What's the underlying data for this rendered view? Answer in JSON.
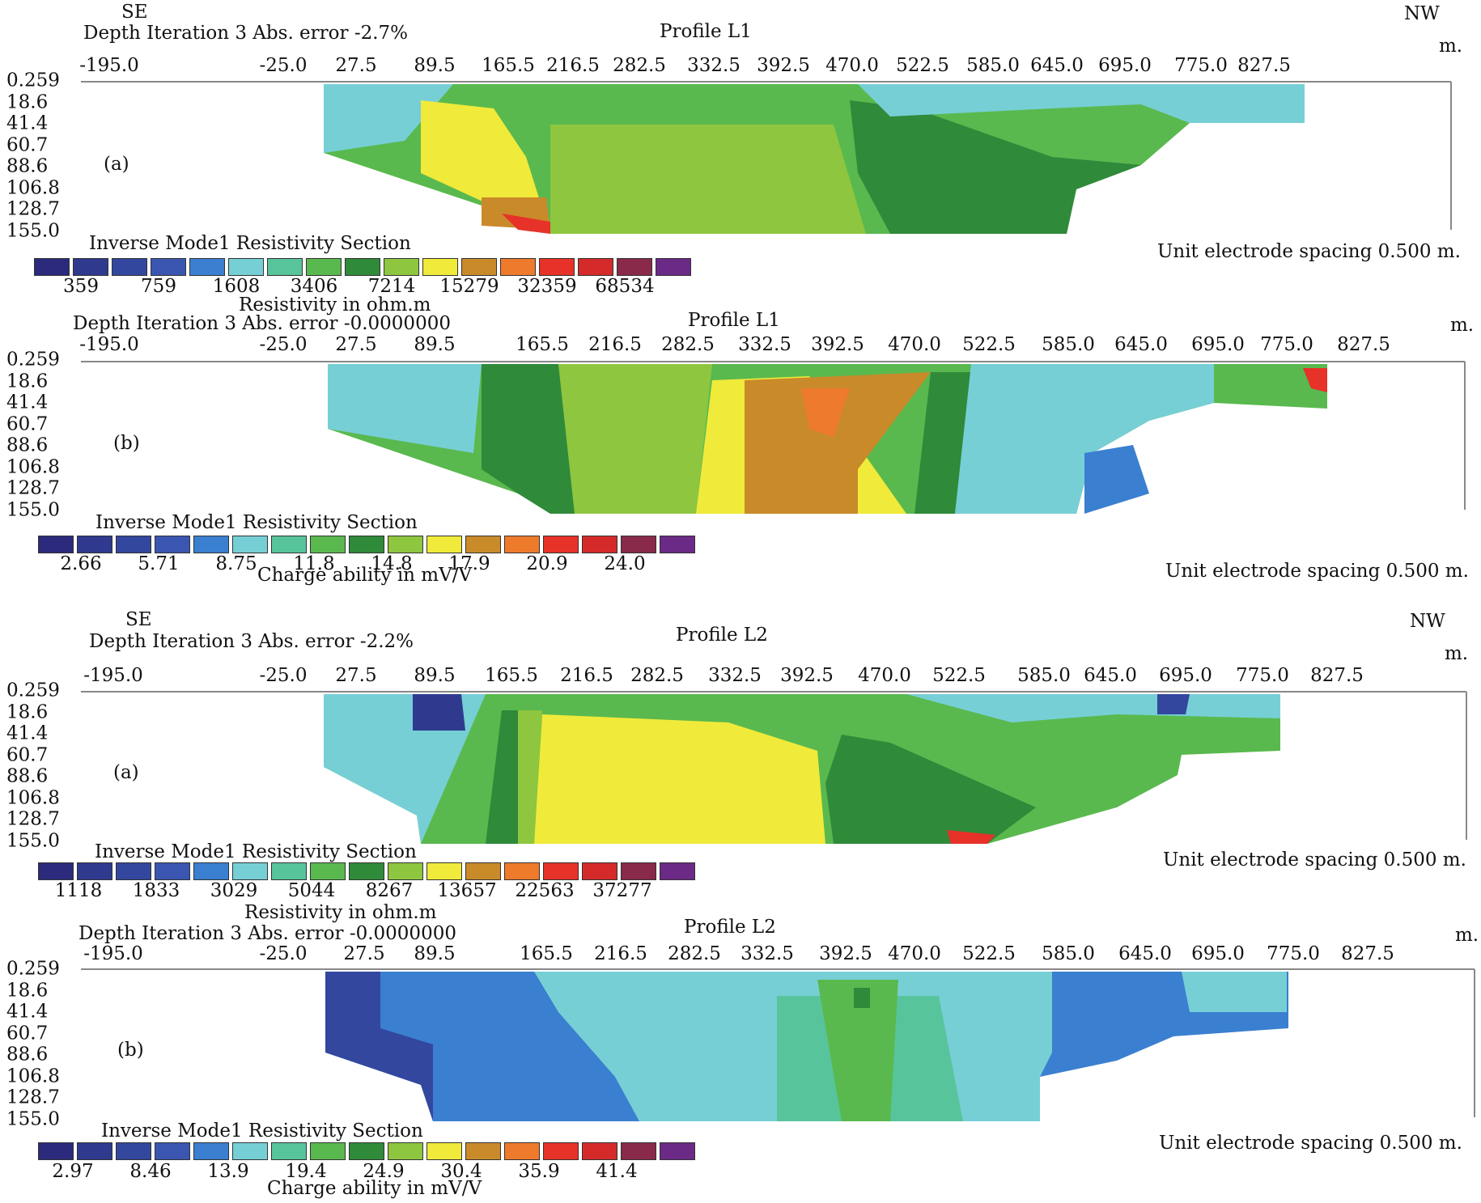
{
  "colors": {
    "scale": [
      "#2b2a7c",
      "#2f3a8f",
      "#33479f",
      "#3a56b0",
      "#3b7fd0",
      "#77cfd6",
      "#58c49c",
      "#59b94e",
      "#2f8a3a",
      "#8ec63f",
      "#f0ea3a",
      "#c98a2a",
      "#ee7a2c",
      "#e63228",
      "#d42a2a",
      "#8a2a4a",
      "#6b2a86"
    ],
    "axis": "#888888",
    "text": "#111111"
  },
  "panels": [
    {
      "id": "L1a",
      "se": "SE",
      "nw": "NW",
      "header": "Depth Iteration 3 Abs. error -2.7%",
      "profile": "Profile L1",
      "unit_m": "m.",
      "label": "(a)",
      "section_title": "Inverse Mode1 Resistivity Section",
      "legend_values": [
        "359",
        "759",
        "1608",
        "3406",
        "7214",
        "15279",
        "32359",
        "68534"
      ],
      "legend_caption": "",
      "spacing": "Unit electrode spacing 0.500 m."
    },
    {
      "id": "L1b",
      "se": "",
      "nw": "",
      "header": "Depth Iteration 3 Abs. error -0.0000000",
      "profile": "Profile L1",
      "unit_m": "m.",
      "label": "(b)",
      "section_title": "Inverse Mode1 Resistivity Section",
      "legend_values": [
        "2.66",
        "5.71",
        "8.75",
        "11.8",
        "14.8",
        "17.9",
        "20.9",
        "24.0"
      ],
      "legend_caption": "Charge ability in mV/V",
      "spacing": "Unit electrode spacing 0.500 m.",
      "above_caption": "Resistivity in ohm.m"
    },
    {
      "id": "L2a",
      "se": "SE",
      "nw": "NW",
      "header": "Depth Iteration 3 Abs. error -2.2%",
      "profile": "Profile L2",
      "unit_m": "m.",
      "label": "(a)",
      "section_title": "Inverse Mode1 Resistivity Section",
      "legend_values": [
        "1118",
        "1833",
        "3029",
        "5044",
        "8267",
        "13657",
        "22563",
        "37277"
      ],
      "legend_caption": "Resistivity in ohm.m",
      "spacing": "Unit electrode spacing 0.500 m."
    },
    {
      "id": "L2b",
      "se": "",
      "nw": "",
      "header": "Depth Iteration 3 Abs. error -0.0000000",
      "profile": "Profile L2",
      "unit_m": "m.",
      "label": "(b)",
      "section_title": "Inverse Mode1 Resistivity Section",
      "legend_values": [
        "2.97",
        "8.46",
        "13.9",
        "19.4",
        "24.9",
        "30.4",
        "35.9",
        "41.4"
      ],
      "legend_caption": "Charge ability in mV/V",
      "spacing": "Unit electrode spacing 0.500 m."
    }
  ],
  "chart_data": {
    "type": "heatmap",
    "x_ticks": [
      "-195.0",
      "-25.0",
      "27.5",
      "89.5",
      "165.5",
      "216.5",
      "282.5",
      "332.5",
      "392.5",
      "470.0",
      "522.5",
      "585.0",
      "645.0",
      "695.0",
      "775.0",
      "827.5"
    ],
    "depth_ticks": [
      "0.259",
      "18.6",
      "41.4",
      "60.7",
      "88.6",
      "106.8",
      "128.7",
      "155.0"
    ],
    "color_bins": 17
  }
}
